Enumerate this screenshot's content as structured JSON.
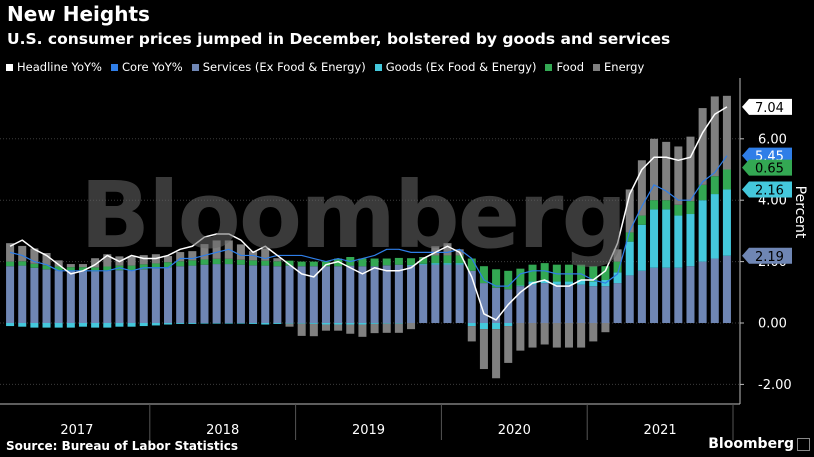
{
  "header": {
    "title": "New Heights",
    "subtitle": "U.S. consumer prices jumped in December, bolstered by goods and services"
  },
  "footer": {
    "source": "Source: Bureau of Labor Statistics",
    "brand": "Bloomberg"
  },
  "watermark": "Bloomberg",
  "chart_data": {
    "type": "bar",
    "ylabel": "Percent",
    "ylim": [
      -2.2,
      7.5
    ],
    "yticks": [
      -2.0,
      0.0,
      2.0,
      4.0,
      6.0
    ],
    "ytick_labels": [
      "-2.00",
      "0.00",
      "2.00",
      "4.00",
      "6.00"
    ],
    "years": [
      "2017",
      "2018",
      "2019",
      "2020",
      "2021"
    ],
    "legend_position": "top",
    "grid": true,
    "colors": {
      "headline": "#ffffff",
      "core": "#2f7ee8",
      "services": "#6f86b4",
      "goods": "#44c8dc",
      "food": "#33a853",
      "energy": "#808080"
    },
    "series": [
      {
        "name": "Headline YoY%",
        "key": "headline",
        "kind": "line",
        "values": [
          2.5,
          2.7,
          2.4,
          2.2,
          1.9,
          1.6,
          1.7,
          1.9,
          2.2,
          2.0,
          2.2,
          2.1,
          2.1,
          2.2,
          2.4,
          2.5,
          2.8,
          2.9,
          2.9,
          2.7,
          2.3,
          2.5,
          2.2,
          1.9,
          1.6,
          1.5,
          1.9,
          2.0,
          1.8,
          1.6,
          1.8,
          1.7,
          1.7,
          1.8,
          2.1,
          2.3,
          2.5,
          2.3,
          1.5,
          0.3,
          0.1,
          0.6,
          1.0,
          1.3,
          1.4,
          1.2,
          1.2,
          1.4,
          1.4,
          1.7,
          2.6,
          4.2,
          5.0,
          5.4,
          5.4,
          5.3,
          5.4,
          6.2,
          6.8,
          7.04
        ]
      },
      {
        "name": "Core YoY%",
        "key": "core",
        "kind": "line",
        "values": [
          2.3,
          2.2,
          2.0,
          1.9,
          1.7,
          1.7,
          1.7,
          1.7,
          1.7,
          1.8,
          1.7,
          1.8,
          1.8,
          1.8,
          2.1,
          2.1,
          2.2,
          2.3,
          2.4,
          2.2,
          2.2,
          2.1,
          2.2,
          2.2,
          2.2,
          2.1,
          2.0,
          2.1,
          2.0,
          2.1,
          2.2,
          2.4,
          2.4,
          2.3,
          2.3,
          2.3,
          2.3,
          2.4,
          2.1,
          1.4,
          1.2,
          1.2,
          1.6,
          1.7,
          1.7,
          1.6,
          1.6,
          1.6,
          1.4,
          1.3,
          1.6,
          3.0,
          3.8,
          4.5,
          4.3,
          4.0,
          4.0,
          4.6,
          4.9,
          5.45
        ]
      },
      {
        "name": "Services (Ex Food & Energy)",
        "key": "services",
        "kind": "bar",
        "values": [
          1.85,
          1.87,
          1.8,
          1.75,
          1.72,
          1.7,
          1.7,
          1.68,
          1.7,
          1.72,
          1.72,
          1.75,
          1.78,
          1.82,
          1.85,
          1.87,
          1.9,
          1.92,
          1.92,
          1.9,
          1.88,
          1.87,
          1.85,
          1.87,
          1.85,
          1.85,
          1.85,
          1.85,
          1.87,
          1.85,
          1.85,
          1.88,
          1.9,
          1.87,
          1.9,
          1.9,
          1.9,
          1.9,
          1.7,
          1.3,
          1.15,
          1.1,
          1.2,
          1.25,
          1.3,
          1.25,
          1.25,
          1.25,
          1.2,
          1.2,
          1.3,
          1.55,
          1.7,
          1.8,
          1.8,
          1.8,
          1.85,
          2.0,
          2.1,
          2.19
        ]
      },
      {
        "name": "Goods (Ex Food & Energy)",
        "key": "goods",
        "kind": "bar",
        "values": [
          -0.1,
          -0.12,
          -0.15,
          -0.15,
          -0.15,
          -0.15,
          -0.12,
          -0.15,
          -0.15,
          -0.12,
          -0.12,
          -0.1,
          -0.08,
          -0.05,
          -0.03,
          -0.03,
          -0.02,
          -0.02,
          -0.02,
          -0.02,
          -0.03,
          -0.05,
          -0.03,
          -0.02,
          -0.02,
          -0.03,
          -0.05,
          -0.05,
          -0.05,
          -0.05,
          -0.03,
          -0.02,
          -0.02,
          0.02,
          0.03,
          0.05,
          0.05,
          0.05,
          -0.1,
          -0.2,
          -0.2,
          -0.1,
          0.02,
          0.1,
          0.1,
          0.1,
          0.1,
          0.15,
          0.15,
          0.2,
          0.35,
          1.1,
          1.5,
          1.9,
          1.9,
          1.7,
          1.7,
          2.0,
          2.1,
          2.16
        ]
      },
      {
        "name": "Food",
        "key": "food",
        "kind": "bar",
        "values": [
          0.15,
          0.14,
          0.13,
          0.13,
          0.12,
          0.12,
          0.12,
          0.13,
          0.14,
          0.15,
          0.15,
          0.16,
          0.16,
          0.16,
          0.16,
          0.17,
          0.17,
          0.17,
          0.17,
          0.16,
          0.16,
          0.16,
          0.16,
          0.16,
          0.15,
          0.15,
          0.15,
          0.25,
          0.28,
          0.25,
          0.25,
          0.22,
          0.22,
          0.22,
          0.22,
          0.25,
          0.25,
          0.25,
          0.4,
          0.55,
          0.6,
          0.6,
          0.55,
          0.55,
          0.55,
          0.55,
          0.55,
          0.5,
          0.5,
          0.45,
          0.35,
          0.3,
          0.3,
          0.3,
          0.3,
          0.35,
          0.42,
          0.5,
          0.58,
          0.65
        ]
      },
      {
        "name": "Energy",
        "key": "energy",
        "kind": "bar",
        "values": [
          0.6,
          0.5,
          0.5,
          0.4,
          0.2,
          0.1,
          0.1,
          0.3,
          0.4,
          0.3,
          0.3,
          0.3,
          0.3,
          0.2,
          0.3,
          0.3,
          0.5,
          0.6,
          0.6,
          0.5,
          0.3,
          0.4,
          0.1,
          -0.1,
          -0.4,
          -0.4,
          -0.2,
          -0.2,
          -0.3,
          -0.4,
          -0.3,
          -0.3,
          -0.3,
          -0.2,
          0.0,
          0.3,
          0.4,
          0.2,
          -0.5,
          -1.3,
          -1.6,
          -1.2,
          -0.9,
          -0.8,
          -0.7,
          -0.8,
          -0.8,
          -0.8,
          -0.6,
          -0.3,
          0.4,
          1.4,
          1.8,
          2.0,
          1.9,
          1.9,
          2.1,
          2.5,
          2.6,
          2.4
        ]
      }
    ],
    "end_labels": [
      {
        "key": "headline",
        "text": "7.04",
        "bg": "#ffffff",
        "fg": "#000000"
      },
      {
        "key": "core",
        "text": "5.45",
        "bg": "#2f7ee8",
        "fg": "#ffffff"
      },
      {
        "key": "food",
        "text": "0.65",
        "bg": "#33a853",
        "fg": "#000000"
      },
      {
        "key": "goods",
        "text": "2.16",
        "bg": "#44c8dc",
        "fg": "#000000"
      },
      {
        "key": "services",
        "text": "2.19",
        "bg": "#6f86b4",
        "fg": "#000000"
      }
    ]
  }
}
